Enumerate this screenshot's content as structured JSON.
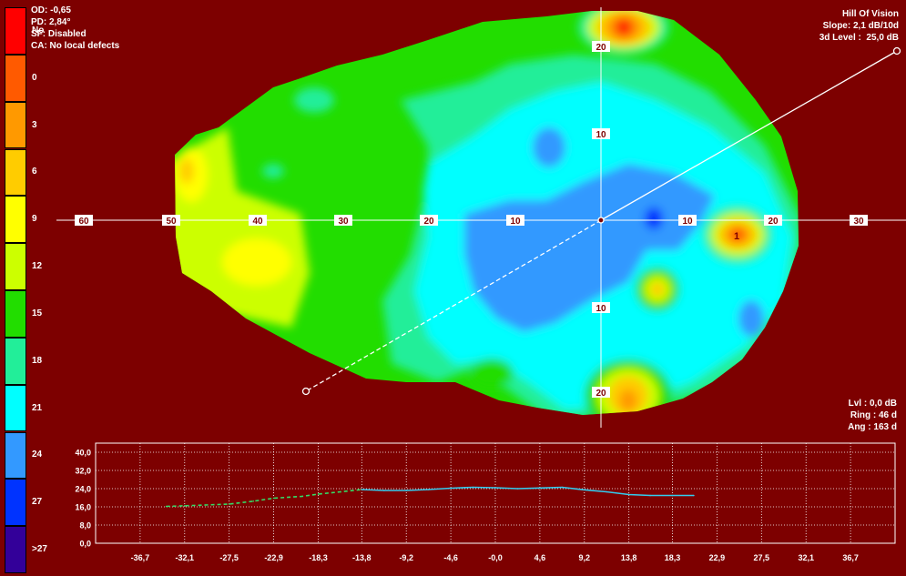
{
  "legend": {
    "items": [
      {
        "label": "No",
        "color": "#ff0000"
      },
      {
        "label": "0",
        "color": "#ff5a00"
      },
      {
        "label": "3",
        "color": "#ff9900"
      },
      {
        "label": "6",
        "color": "#ffcc00"
      },
      {
        "label": "9",
        "color": "#ffff00"
      },
      {
        "label": "12",
        "color": "#ccff00"
      },
      {
        "label": "15",
        "color": "#22dd00"
      },
      {
        "label": "18",
        "color": "#22ee99"
      },
      {
        "label": "21",
        "color": "#00ffff"
      },
      {
        "label": "24",
        "color": "#3399ff"
      },
      {
        "label": "27",
        "color": "#0033ff"
      },
      {
        "label": ">27",
        "color": "#330099"
      }
    ]
  },
  "info_left": {
    "od": "OD: -0,65",
    "pd": "PD: 2,84°",
    "sf": "SF: Disabled",
    "ca": "CA: No local defects"
  },
  "info_right": {
    "title": "Hill Of Vision",
    "slope": "Slope: 2,1 dB/10d",
    "level": "3d Level :  25,0 dB"
  },
  "info_bottom": {
    "lvl": "Lvl : 0,0 dB",
    "ring": "Ring : 46 d",
    "ang": "Ang : 163 d"
  },
  "map": {
    "x_labels": [
      "60",
      "50",
      "40",
      "30",
      "20",
      "10",
      "10",
      "20",
      "30"
    ],
    "y_labels": [
      "20",
      "10",
      "10",
      "20"
    ],
    "spot_label": "1",
    "background": "#7d0000"
  },
  "chart_data": {
    "type": "line",
    "title": "",
    "xlabel": "",
    "ylabel": "",
    "x_ticks": [
      "-36,7",
      "-32,1",
      "-27,5",
      "-22,9",
      "-18,3",
      "-13,8",
      "-9,2",
      "-4,6",
      "-0,0",
      "4,6",
      "9,2",
      "13,8",
      "18,3",
      "22,9",
      "27,5",
      "32,1",
      "36,7"
    ],
    "y_ticks": [
      "0,0",
      "8,0",
      "16,0",
      "24,0",
      "32,0",
      "40,0"
    ],
    "ylim": [
      0,
      44
    ],
    "xlim": [
      -41.3,
      41.3
    ],
    "grid": true,
    "series": [
      {
        "style": "dashed",
        "x": [
          -34,
          -32.1,
          -30,
          -27.5,
          -25,
          -22.9,
          -20,
          -18.3,
          -16,
          -13.8
        ],
        "y": [
          16.2,
          16.5,
          16.8,
          17.2,
          18.5,
          19.8,
          20.6,
          21.6,
          22.6,
          23.6
        ]
      },
      {
        "style": "solid",
        "x": [
          -13.8,
          -11.5,
          -9.2,
          -6.9,
          -4.6,
          -2.3,
          -0.0,
          2.3,
          4.6,
          6.9,
          9.2,
          11.5,
          13.8,
          16,
          18.3,
          20.5
        ],
        "y": [
          23.6,
          23.2,
          23.2,
          23.6,
          24.2,
          24.6,
          24.4,
          24.0,
          24.3,
          24.6,
          23.5,
          22.6,
          21.4,
          21.0,
          21.0,
          21.0
        ]
      }
    ]
  }
}
